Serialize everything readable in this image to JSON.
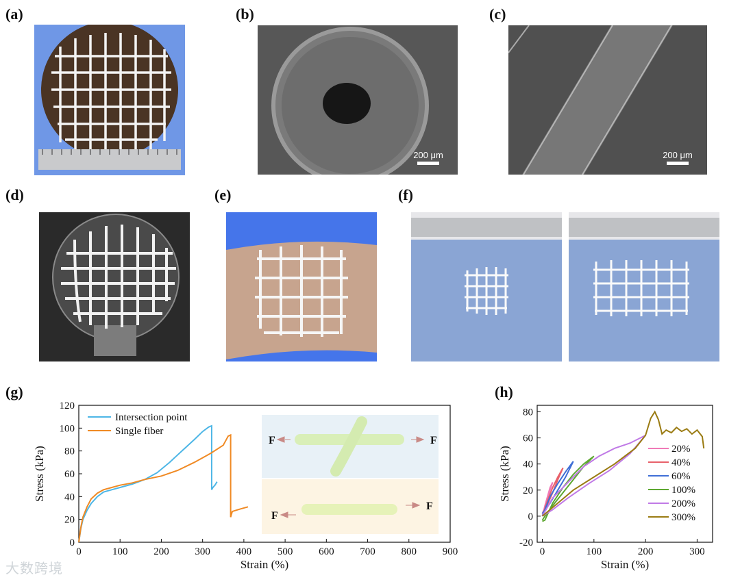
{
  "panels": {
    "a": "(a)",
    "b": "(b)",
    "c": "(c)",
    "d": "(d)",
    "e": "(e)",
    "f": "(f)",
    "g": "(g)",
    "h": "(h)"
  },
  "scale_bars": {
    "b": "200 μm",
    "c": "200 μm"
  },
  "inset": {
    "force_label": "F"
  },
  "watermark": "大数跨境",
  "colors": {
    "intersection": "#4db6e6",
    "single_fiber": "#f08a24",
    "c20": "#f07ab8",
    "c40": "#e8616a",
    "c60": "#3f6fd6",
    "c100": "#5ea832",
    "c200": "#c07ae6",
    "c300": "#9a7b12"
  },
  "chart_data": [
    {
      "type": "line",
      "panel": "g",
      "xlabel": "Strain (%)",
      "ylabel": "Stress (kPa)",
      "xlim": [
        0,
        900
      ],
      "ylim": [
        0,
        120
      ],
      "xticks": [
        0,
        100,
        200,
        300,
        400,
        500,
        600,
        700,
        800,
        900
      ],
      "yticks": [
        0,
        20,
        40,
        60,
        80,
        100,
        120
      ],
      "legend": "top-left",
      "series": [
        {
          "name": "Intersection point",
          "x": [
            0,
            5,
            10,
            20,
            30,
            45,
            60,
            80,
            100,
            130,
            160,
            190,
            220,
            250,
            280,
            300,
            315,
            322,
            322,
            325,
            330,
            335
          ],
          "y": [
            0,
            12,
            20,
            28,
            34,
            40,
            44,
            46,
            48,
            51,
            55,
            61,
            70,
            80,
            90,
            97,
            101,
            102,
            46,
            48,
            50,
            53
          ]
        },
        {
          "name": "Single fiber",
          "x": [
            0,
            5,
            10,
            20,
            30,
            45,
            60,
            80,
            100,
            130,
            160,
            200,
            240,
            280,
            320,
            350,
            362,
            368,
            368,
            372,
            390,
            410
          ],
          "y": [
            0,
            13,
            22,
            31,
            38,
            43,
            46,
            48,
            50,
            52,
            55,
            58,
            63,
            70,
            78,
            85,
            93,
            94,
            22,
            27,
            29,
            31
          ]
        }
      ]
    },
    {
      "type": "line",
      "panel": "h",
      "xlabel": "Strain (%)",
      "ylabel": "Stress (kPa)",
      "xlim": [
        -10,
        330
      ],
      "ylim": [
        -20,
        85
      ],
      "xticks": [
        0,
        100,
        200,
        300
      ],
      "yticks": [
        -20,
        0,
        20,
        40,
        60,
        80
      ],
      "legend": "right",
      "series": [
        {
          "name": "20%",
          "x": [
            0,
            5,
            10,
            15,
            20,
            15,
            10,
            5,
            0
          ],
          "y": [
            0,
            8,
            15,
            22,
            26,
            20,
            14,
            7,
            2
          ]
        },
        {
          "name": "40%",
          "x": [
            0,
            10,
            20,
            30,
            40,
            30,
            20,
            10,
            0
          ],
          "y": [
            0,
            12,
            22,
            30,
            37,
            28,
            18,
            9,
            2
          ]
        },
        {
          "name": "60%",
          "x": [
            0,
            15,
            30,
            45,
            60,
            45,
            30,
            15,
            0
          ],
          "y": [
            0,
            15,
            25,
            34,
            42,
            30,
            20,
            10,
            2
          ]
        },
        {
          "name": "100%",
          "x": [
            0,
            5,
            20,
            40,
            60,
            80,
            100,
            80,
            60,
            40,
            20,
            5,
            0
          ],
          "y": [
            -4,
            -3,
            10,
            22,
            32,
            40,
            46,
            38,
            28,
            18,
            8,
            0,
            -3
          ]
        },
        {
          "name": "200%",
          "x": [
            0,
            20,
            50,
            80,
            110,
            140,
            170,
            190,
            200,
            170,
            130,
            90,
            50,
            20,
            0
          ],
          "y": [
            0,
            14,
            26,
            38,
            46,
            52,
            56,
            60,
            62,
            48,
            35,
            25,
            14,
            5,
            0
          ]
        },
        {
          "name": "300%",
          "x": [
            0,
            30,
            60,
            100,
            140,
            180,
            200,
            210,
            218,
            225,
            232,
            240,
            250,
            260,
            270,
            280,
            290,
            300,
            310,
            313
          ],
          "y": [
            0,
            10,
            20,
            30,
            40,
            52,
            62,
            75,
            80,
            74,
            63,
            66,
            64,
            68,
            65,
            67,
            63,
            66,
            61,
            52
          ]
        }
      ]
    }
  ]
}
